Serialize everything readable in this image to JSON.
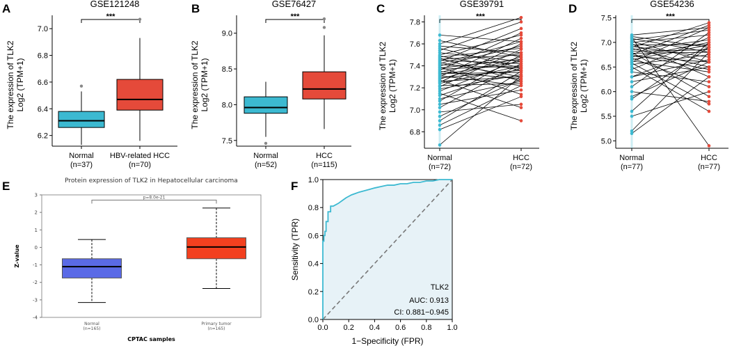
{
  "chart_data": [
    {
      "id": "A",
      "type": "boxplot",
      "title": "GSE121248",
      "ylabel_line1": "The expression of TLK2",
      "ylabel_line2": "Log2 (TPM+1)",
      "significance": "***",
      "ylim": [
        6.12,
        7.1
      ],
      "yticks": [
        "6.2",
        "6.4",
        "6.6",
        "6.8",
        "7.0"
      ],
      "groups": [
        {
          "name": "Normal",
          "n": "(n=37)",
          "color": "#3cb9d1",
          "whisker_low": 6.13,
          "q1": 6.26,
          "median": 6.31,
          "q3": 6.38,
          "whisker_high": 6.53,
          "outliers": [
            6.57
          ]
        },
        {
          "name": "HBV-related HCC",
          "n": "(n=70)",
          "color": "#e54a3a",
          "whisker_low": 6.16,
          "q1": 6.39,
          "median": 6.47,
          "q3": 6.62,
          "whisker_high": 6.93,
          "outliers": [
            7.07
          ]
        }
      ]
    },
    {
      "id": "B",
      "type": "boxplot",
      "title": "GSE76427",
      "ylabel_line1": "The expression of TLK2",
      "ylabel_line2": "Log2 (TPM+1)",
      "significance": "***",
      "ylim": [
        7.42,
        9.25
      ],
      "yticks": [
        "7.5",
        "8.0",
        "8.5",
        "9.0"
      ],
      "groups": [
        {
          "name": "Normal",
          "n": "(n=52)",
          "color": "#3cb9d1",
          "whisker_low": 7.55,
          "q1": 7.88,
          "median": 7.96,
          "q3": 8.11,
          "whisker_high": 8.32,
          "outliers": [
            7.46
          ]
        },
        {
          "name": "HCC",
          "n": "(n=115)",
          "color": "#e54a3a",
          "whisker_low": 7.66,
          "q1": 8.08,
          "median": 8.22,
          "q3": 8.46,
          "whisker_high": 8.97,
          "outliers": [
            9.08,
            9.2
          ]
        }
      ]
    },
    {
      "id": "C",
      "type": "paired",
      "title": "GSE39791",
      "ylabel_line1": "The expression of TLK2",
      "ylabel_line2": "Log2 (TPM+1)",
      "significance": "***",
      "ylim": [
        6.65,
        7.86
      ],
      "yticks": [
        "6.8",
        "7.0",
        "7.2",
        "7.4",
        "7.6",
        "7.8"
      ],
      "groups": [
        {
          "name": "Normal",
          "n": "(n=72)",
          "color": "#3cb9d1"
        },
        {
          "name": "HCC",
          "n": "(n=72)",
          "color": "#e54a3a"
        }
      ],
      "pairs": [
        [
          6.68,
          7.31
        ],
        [
          6.82,
          7.12
        ],
        [
          6.86,
          7.22
        ],
        [
          6.9,
          7.35
        ],
        [
          6.94,
          7.28
        ],
        [
          6.98,
          7.05
        ],
        [
          7.02,
          7.42
        ],
        [
          7.05,
          7.18
        ],
        [
          7.08,
          7.5
        ],
        [
          7.1,
          7.26
        ],
        [
          7.13,
          7.38
        ],
        [
          7.15,
          6.9
        ],
        [
          7.17,
          7.46
        ],
        [
          7.19,
          7.32
        ],
        [
          7.21,
          7.55
        ],
        [
          7.22,
          7.24
        ],
        [
          7.24,
          7.4
        ],
        [
          7.25,
          7.6
        ],
        [
          7.26,
          7.3
        ],
        [
          7.27,
          7.02
        ],
        [
          7.28,
          7.48
        ],
        [
          7.29,
          7.36
        ],
        [
          7.3,
          7.65
        ],
        [
          7.31,
          7.22
        ],
        [
          7.32,
          7.44
        ],
        [
          7.33,
          7.34
        ],
        [
          7.34,
          7.52
        ],
        [
          7.35,
          7.28
        ],
        [
          7.36,
          7.7
        ],
        [
          7.37,
          7.4
        ],
        [
          7.38,
          7.46
        ],
        [
          7.39,
          7.14
        ],
        [
          7.4,
          7.58
        ],
        [
          7.41,
          7.38
        ],
        [
          7.42,
          7.62
        ],
        [
          7.43,
          7.3
        ],
        [
          7.44,
          7.74
        ],
        [
          7.45,
          7.42
        ],
        [
          7.46,
          7.5
        ],
        [
          7.47,
          7.26
        ],
        [
          7.48,
          7.56
        ],
        [
          7.49,
          7.36
        ],
        [
          7.5,
          7.68
        ],
        [
          7.52,
          7.44
        ],
        [
          7.54,
          7.8
        ],
        [
          7.56,
          7.38
        ],
        [
          7.58,
          7.52
        ],
        [
          7.6,
          7.84
        ],
        [
          7.63,
          7.48
        ],
        [
          7.68,
          7.62
        ]
      ]
    },
    {
      "id": "D",
      "type": "paired",
      "title": "GSE54236",
      "ylabel_line1": "The expression of TLK2",
      "ylabel_line2": "Log2 (TPM+1)",
      "significance": "***",
      "ylim": [
        4.85,
        7.55
      ],
      "yticks": [
        "5.0",
        "5.5",
        "6.0",
        "6.5",
        "7.0",
        "7.5"
      ],
      "groups": [
        {
          "name": "Normal",
          "n": "(n=77)",
          "color": "#3cb9d1"
        },
        {
          "name": "HCC",
          "n": "(n=77)",
          "color": "#e54a3a"
        }
      ],
      "pairs": [
        [
          5.15,
          6.3
        ],
        [
          5.2,
          6.8
        ],
        [
          5.5,
          6.0
        ],
        [
          5.6,
          7.0
        ],
        [
          5.9,
          6.6
        ],
        [
          6.0,
          5.8
        ],
        [
          6.1,
          7.2
        ],
        [
          6.2,
          6.5
        ],
        [
          6.3,
          6.9
        ],
        [
          6.4,
          6.2
        ],
        [
          6.45,
          7.1
        ],
        [
          6.5,
          5.6
        ],
        [
          6.55,
          6.75
        ],
        [
          6.6,
          7.3
        ],
        [
          6.62,
          6.4
        ],
        [
          6.65,
          6.95
        ],
        [
          6.68,
          6.1
        ],
        [
          6.7,
          7.0
        ],
        [
          6.72,
          6.6
        ],
        [
          6.75,
          7.35
        ],
        [
          6.78,
          6.8
        ],
        [
          6.8,
          5.9
        ],
        [
          6.82,
          6.85
        ],
        [
          6.85,
          7.05
        ],
        [
          6.88,
          6.5
        ],
        [
          6.9,
          7.4
        ],
        [
          6.92,
          6.7
        ],
        [
          6.95,
          6.95
        ],
        [
          6.97,
          6.3
        ],
        [
          7.0,
          7.15
        ],
        [
          7.02,
          6.6
        ],
        [
          7.05,
          7.25
        ],
        [
          7.08,
          6.8
        ],
        [
          7.1,
          4.9
        ],
        [
          7.12,
          6.9
        ],
        [
          7.15,
          7.3
        ],
        [
          6.3,
          6.65
        ],
        [
          6.58,
          5.75
        ],
        [
          5.85,
          6.9
        ],
        [
          6.75,
          6.45
        ]
      ]
    },
    {
      "id": "E",
      "type": "boxplot",
      "title": "Protein expression of TLK2 in Hepatocellular carcinoma",
      "ylabel": "Z-value",
      "xlabel": "CPTAC samples",
      "pvalue": "p=8.0e-21",
      "ylim": [
        -4,
        3
      ],
      "yticks": [
        "-4",
        "-3",
        "-2",
        "-1",
        "0",
        "1",
        "2",
        "3"
      ],
      "groups": [
        {
          "name": "Normal",
          "n": "(n=165)",
          "color": "#5a6ae6",
          "whisker_low": -3.15,
          "q1": -1.75,
          "median": -1.1,
          "q3": -0.65,
          "whisker_high": 0.45
        },
        {
          "name": "Primary tumor",
          "n": "(n=165)",
          "color": "#f2401f",
          "whisker_low": -2.35,
          "q1": -0.65,
          "median": 0.02,
          "q3": 0.55,
          "whisker_high": 2.25
        }
      ]
    },
    {
      "id": "F",
      "type": "roc",
      "xlabel": "1−Specificity (FPR)",
      "ylabel": "Sensitivity (TPR)",
      "xlim": [
        0,
        1
      ],
      "ylim": [
        0,
        1
      ],
      "xticks": [
        "0.0",
        "0.2",
        "0.4",
        "0.6",
        "0.8",
        "1.0"
      ],
      "yticks": [
        "0.0",
        "0.2",
        "0.4",
        "0.6",
        "0.8",
        "1.0"
      ],
      "label": "TLK2",
      "auc": "AUC: 0.913",
      "ci": "CI: 0.881−0.945",
      "fpr": [
        0,
        0,
        0.008,
        0.008,
        0.016,
        0.016,
        0.025,
        0.025,
        0.04,
        0.04,
        0.06,
        0.06,
        0.08,
        0.1,
        0.12,
        0.15,
        0.18,
        0.2,
        0.22,
        0.25,
        0.28,
        0.32,
        0.36,
        0.4,
        0.45,
        0.5,
        0.55,
        0.6,
        0.65,
        0.7,
        0.75,
        0.8,
        0.85,
        0.9,
        0.95,
        1.0
      ],
      "tpr": [
        0,
        0.56,
        0.56,
        0.6,
        0.6,
        0.63,
        0.63,
        0.7,
        0.7,
        0.77,
        0.77,
        0.81,
        0.81,
        0.82,
        0.83,
        0.85,
        0.87,
        0.88,
        0.89,
        0.9,
        0.91,
        0.92,
        0.93,
        0.94,
        0.95,
        0.96,
        0.96,
        0.97,
        0.97,
        0.98,
        0.98,
        0.99,
        0.99,
        1.0,
        1.0,
        1.0
      ]
    }
  ]
}
